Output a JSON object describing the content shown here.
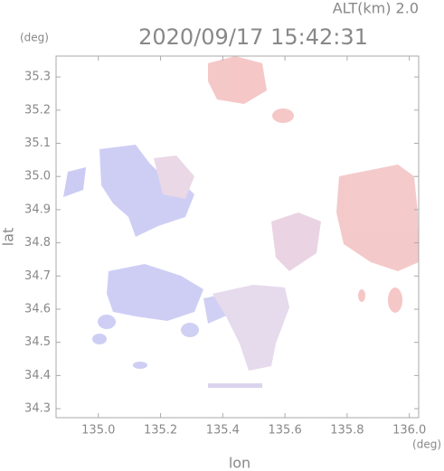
{
  "chart_data": {
    "type": "radar-map",
    "title": "2020/09/17 15:42:31",
    "subtitle": "ALT(km) 2.0",
    "x_label": "lon",
    "y_label": "lat",
    "x_unit": "(deg)",
    "y_unit": "(deg)",
    "xlim": [
      134.864,
      136.03
    ],
    "ylim": [
      34.273,
      35.363
    ],
    "xticks": [
      {
        "value": 135,
        "label": "135.0"
      },
      {
        "value": 135.2,
        "label": "135.2"
      },
      {
        "value": 135.4,
        "label": "135.4"
      },
      {
        "value": 135.6,
        "label": "135.6"
      },
      {
        "value": 135.8,
        "label": "135.8"
      },
      {
        "value": 136,
        "label": "136.0"
      }
    ],
    "yticks": [
      34.3,
      34.4,
      34.5,
      34.6,
      34.7,
      34.8,
      34.9,
      {
        "value": 35,
        "label": "35.0"
      },
      35.1,
      35.2,
      35.3
    ]
  }
}
